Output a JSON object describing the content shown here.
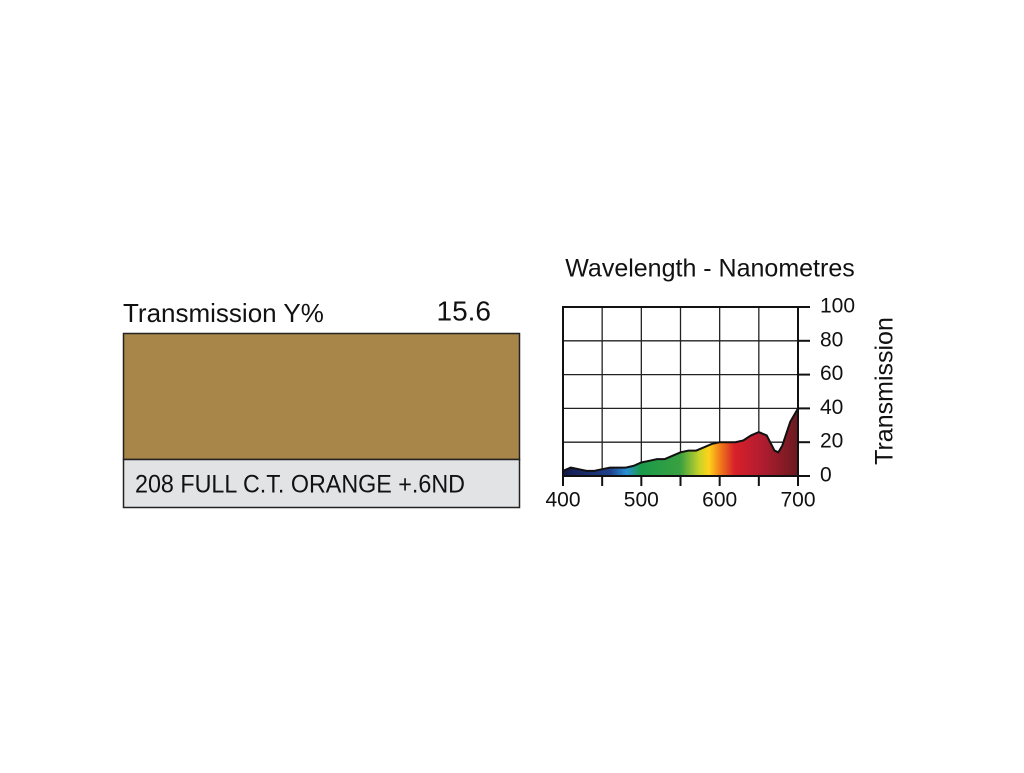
{
  "swatch": {
    "label": "Transmission Y%",
    "value": 15.6,
    "name": "208 FULL C.T. ORANGE +.6ND",
    "color": "#a8864a",
    "name_background": "#e2e3e5"
  },
  "chart_data": {
    "type": "area",
    "title": "Wavelength - Nanometres",
    "y_label": "Transmission",
    "x": [
      400,
      410,
      420,
      430,
      440,
      450,
      460,
      470,
      480,
      490,
      500,
      510,
      520,
      530,
      540,
      550,
      560,
      570,
      580,
      590,
      600,
      610,
      620,
      630,
      640,
      650,
      660,
      670,
      675,
      680,
      690,
      700
    ],
    "values": [
      3,
      5,
      4,
      3,
      3,
      4,
      5,
      5,
      5,
      6,
      8,
      9,
      10,
      10,
      12,
      14,
      15,
      15,
      17,
      19,
      20,
      20,
      20,
      21,
      24,
      26,
      24,
      15,
      14,
      18,
      32,
      40
    ],
    "xlim": [
      400,
      700
    ],
    "ylim": [
      0,
      100
    ],
    "xticks": [
      400,
      500,
      600,
      700
    ],
    "xminor": [
      450,
      550,
      650
    ],
    "yticks": [
      0,
      20,
      40,
      60,
      80,
      100
    ],
    "grid": true
  }
}
